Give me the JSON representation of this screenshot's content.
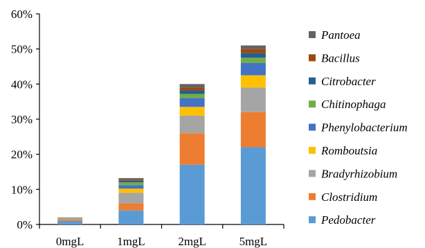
{
  "chart_data": {
    "type": "bar",
    "stacked": true,
    "categories": [
      "0mgL",
      "1mgL",
      "2mgL",
      "5mgL"
    ],
    "ylim": [
      0,
      60
    ],
    "yticks": [
      "0%",
      "10%",
      "20%",
      "30%",
      "40%",
      "50%",
      "60%"
    ],
    "legend_position": "right",
    "grid": false,
    "series": [
      {
        "name": "Pedobacter",
        "color": "#5B9BD5",
        "values": [
          1.0,
          4.0,
          17.0,
          22.0
        ]
      },
      {
        "name": "Clostridium",
        "color": "#ED7D31",
        "values": [
          0.4,
          2.0,
          9.0,
          10.0
        ]
      },
      {
        "name": "Bradyrhizobium",
        "color": "#A5A5A5",
        "values": [
          0.2,
          3.0,
          5.0,
          7.0
        ]
      },
      {
        "name": "Romboutsia",
        "color": "#FFC000",
        "values": [
          0.1,
          1.2,
          2.5,
          3.5
        ]
      },
      {
        "name": "Phenylobacterium",
        "color": "#4472C4",
        "values": [
          0.1,
          1.0,
          2.5,
          3.5
        ]
      },
      {
        "name": "Chitinophaga",
        "color": "#70AD47",
        "values": [
          0.05,
          0.8,
          1.2,
          1.5
        ]
      },
      {
        "name": "Citrobacter",
        "color": "#255E91",
        "values": [
          0.05,
          0.5,
          1.0,
          1.3
        ]
      },
      {
        "name": "Bacillus",
        "color": "#9E480E",
        "values": [
          0.05,
          0.3,
          0.8,
          1.2
        ]
      },
      {
        "name": "Pantoea",
        "color": "#636363",
        "values": [
          0.05,
          0.4,
          1.0,
          1.0
        ]
      }
    ]
  }
}
